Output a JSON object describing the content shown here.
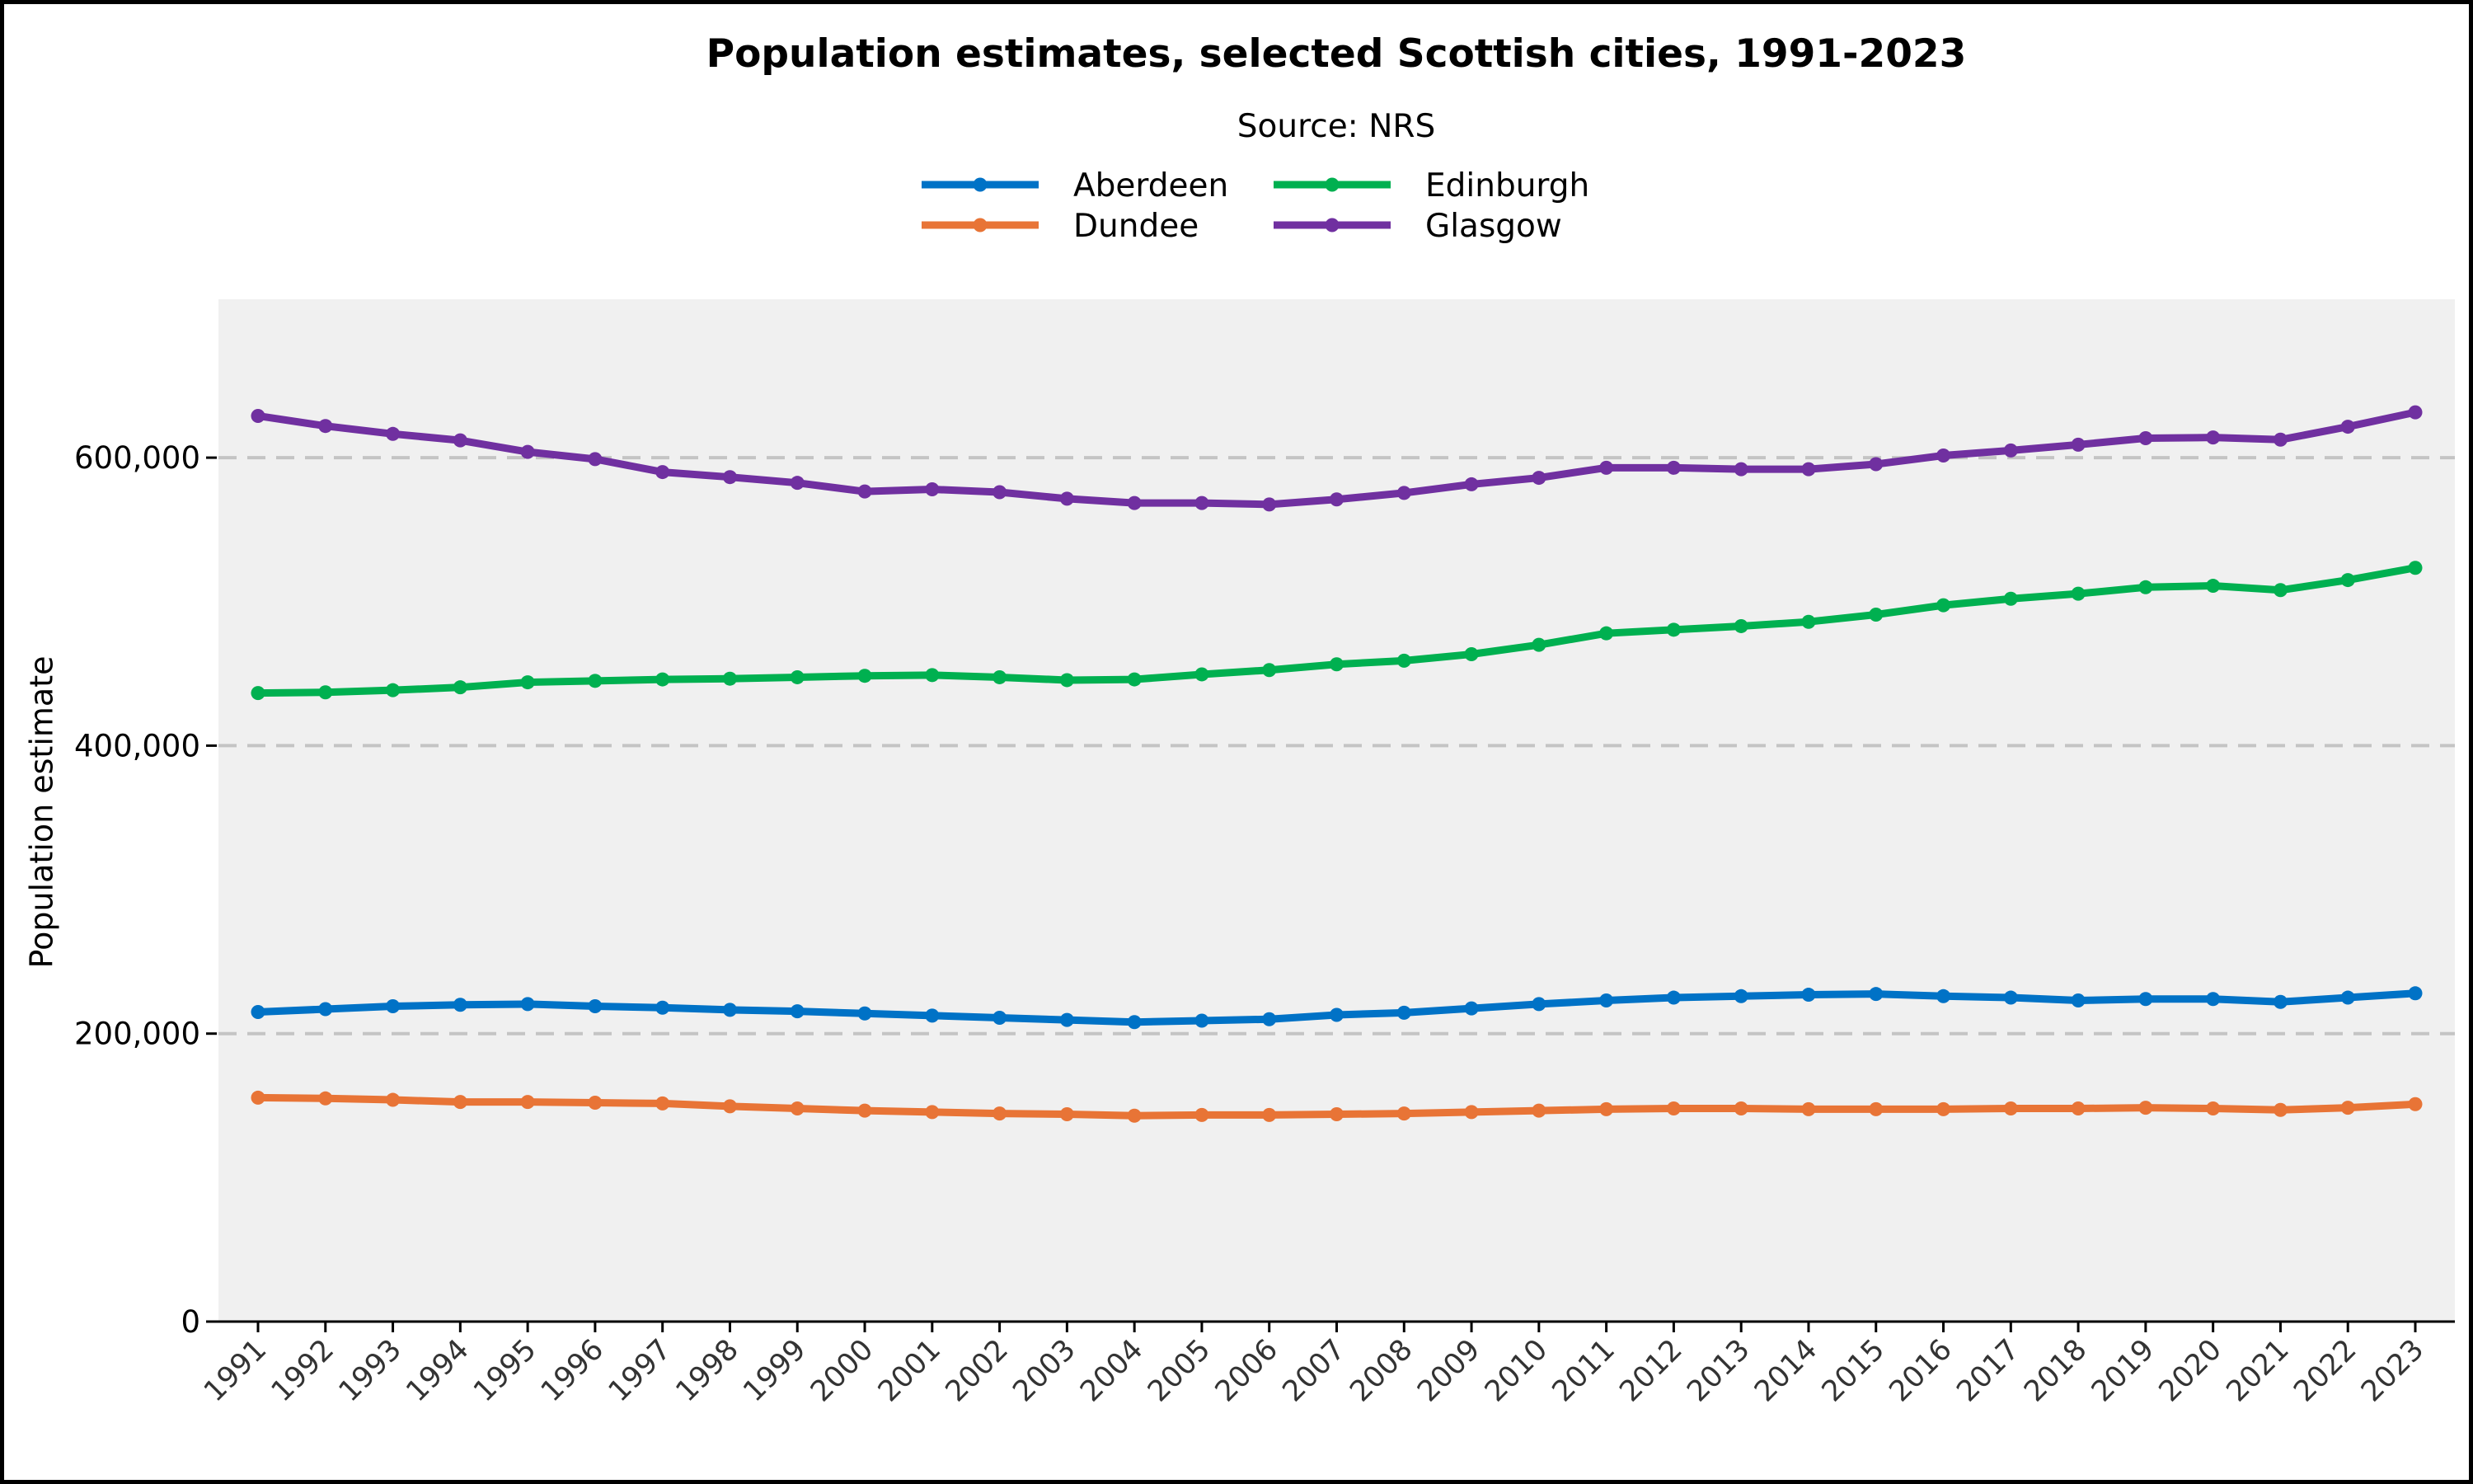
{
  "chart_data": {
    "type": "line",
    "title": "Population estimates, selected Scottish cities, 1991-2023",
    "subtitle": "Source: NRS",
    "xlabel": "",
    "ylabel": "Population estimate",
    "ylim": [
      0,
      710000
    ],
    "yticks": [
      0,
      200000,
      400000,
      600000
    ],
    "ytick_labels": [
      "0",
      "200,000",
      "400,000",
      "600,000"
    ],
    "grid": "horizontal dashed",
    "legend_position": "top-center",
    "x": [
      "1991",
      "1992",
      "1993",
      "1994",
      "1995",
      "1996",
      "1997",
      "1998",
      "1999",
      "2000",
      "2001",
      "2002",
      "2003",
      "2004",
      "2005",
      "2006",
      "2007",
      "2008",
      "2009",
      "2010",
      "2011",
      "2012",
      "2013",
      "2014",
      "2015",
      "2016",
      "2017",
      "2018",
      "2019",
      "2020",
      "2021",
      "2022",
      "2023"
    ],
    "series": [
      {
        "name": "Aberdeen",
        "color": "#0072c6",
        "values": [
          215000,
          217000,
          219000,
          220000,
          220500,
          219000,
          218000,
          216500,
          215500,
          214000,
          212500,
          211000,
          209500,
          208000,
          209000,
          210000,
          213000,
          214500,
          217500,
          220500,
          223000,
          225000,
          226000,
          227000,
          227500,
          226000,
          225000,
          223000,
          224000,
          224000,
          222000,
          225000,
          228000
        ]
      },
      {
        "name": "Dundee",
        "color": "#e87436",
        "values": [
          155500,
          155000,
          154000,
          152500,
          152500,
          152000,
          151500,
          149500,
          148000,
          146500,
          145500,
          144500,
          144000,
          143000,
          143500,
          143500,
          144000,
          144500,
          145500,
          146500,
          147500,
          148000,
          148000,
          147500,
          147500,
          147500,
          148000,
          148000,
          148500,
          148000,
          147000,
          148500,
          151000
        ]
      },
      {
        "name": "Edinburgh",
        "color": "#00b050",
        "values": [
          436500,
          437000,
          438500,
          440500,
          444000,
          445000,
          446000,
          446500,
          447500,
          448500,
          449000,
          447500,
          445500,
          446000,
          449500,
          452500,
          456500,
          459000,
          463500,
          470000,
          478000,
          480500,
          483000,
          486000,
          491000,
          497500,
          502000,
          505500,
          510000,
          511000,
          508000,
          515000,
          523500
        ]
      },
      {
        "name": "Glasgow",
        "color": "#7030a0",
        "values": [
          629000,
          622000,
          616500,
          612000,
          604000,
          599000,
          590000,
          586500,
          582500,
          576500,
          578000,
          576000,
          571500,
          568500,
          568500,
          567500,
          571000,
          575500,
          581500,
          586000,
          593000,
          593000,
          592000,
          592000,
          595500,
          601500,
          605000,
          609000,
          613500,
          614000,
          612500,
          621500,
          631500
        ]
      }
    ]
  }
}
